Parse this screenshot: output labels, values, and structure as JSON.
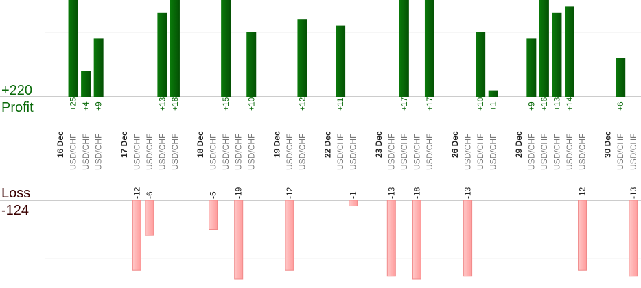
{
  "chart_data": {
    "type": "bar",
    "profit": {
      "title": "Profit",
      "total": 220,
      "total_label": "+220",
      "color": "#0a6a0a"
    },
    "loss": {
      "title": "Loss",
      "total": -124,
      "color": "#ffb3b3"
    },
    "profit_ylim": [
      0,
      15
    ],
    "profit_yticks": [
      10
    ],
    "loss_ylim": [
      -13.5,
      0
    ],
    "loss_yticks": [
      -10
    ],
    "grid": true,
    "categories": [
      "16 Dec",
      "USD/CHF",
      "USD/CHF",
      "USD/CHF",
      null,
      "17 Dec",
      "USD/CHF",
      "USD/CHF",
      "USD/CHF",
      "USD/CHF",
      null,
      "18 Dec",
      "USD/CHF",
      "USD/CHF",
      "USD/CHF",
      "USD/CHF",
      null,
      "19 Dec",
      "USD/CHF",
      "USD/CHF",
      null,
      "22 Dec",
      "USD/CHF",
      "USD/CHF",
      null,
      "23 Dec",
      "USD/CHF",
      "USD/CHF",
      "USD/CHF",
      "USD/CHF",
      null,
      "26 Dec",
      "USD/CHF",
      "USD/CHF",
      "USD/CHF",
      null,
      "29 Dec",
      "USD/CHF",
      "USD/CHF",
      "USD/CHF",
      "USD/CHF",
      "USD/CHF",
      null,
      "30 Dec",
      "USD/CHF",
      "USD/CHF"
    ],
    "values": [
      null,
      25,
      4,
      9,
      null,
      null,
      -12,
      -6,
      13,
      18,
      null,
      null,
      -5,
      15,
      -19,
      10,
      null,
      null,
      -12,
      12,
      null,
      null,
      11,
      -1,
      null,
      null,
      -13,
      17,
      -18,
      17,
      null,
      null,
      -13,
      10,
      1,
      null,
      null,
      9,
      16,
      13,
      14,
      -12,
      null,
      null,
      6,
      -13
    ],
    "value_labels": [
      null,
      "+25",
      "+4",
      "+9",
      null,
      null,
      "-12",
      "-6",
      "+13",
      "+18",
      null,
      null,
      "-5",
      "+15",
      "-19",
      "+10",
      null,
      null,
      "-12",
      "+12",
      null,
      null,
      "+11",
      "-1",
      null,
      null,
      "-13",
      "+17",
      "-18",
      "+17",
      null,
      null,
      "-13",
      "+10",
      "+1",
      null,
      null,
      "+9",
      "+16",
      "+13",
      "+14",
      "-12",
      null,
      null,
      "+6",
      "-13"
    ]
  }
}
